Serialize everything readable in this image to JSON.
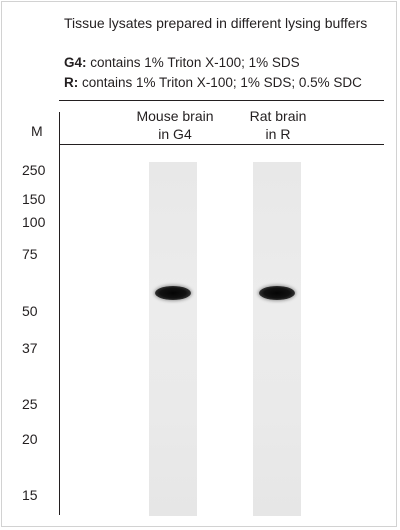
{
  "title": "Tissue lysates prepared in different lysing buffers",
  "buffers": [
    {
      "key": "G4:",
      "description": " contains 1% Triton X-100; 1% SDS"
    },
    {
      "key": "R:",
      "description": " contains 1% Triton X-100; 1% SDS; 0.5% SDC"
    }
  ],
  "marker_column_label": "M",
  "marker_ladder": [
    "250",
    "150",
    "100",
    "75",
    "50",
    "37",
    "25",
    "20",
    "15"
  ],
  "lanes": [
    {
      "line1": "Mouse brain",
      "line2": "in G4"
    },
    {
      "line1": "Rat brain",
      "line2": "in R"
    }
  ]
}
